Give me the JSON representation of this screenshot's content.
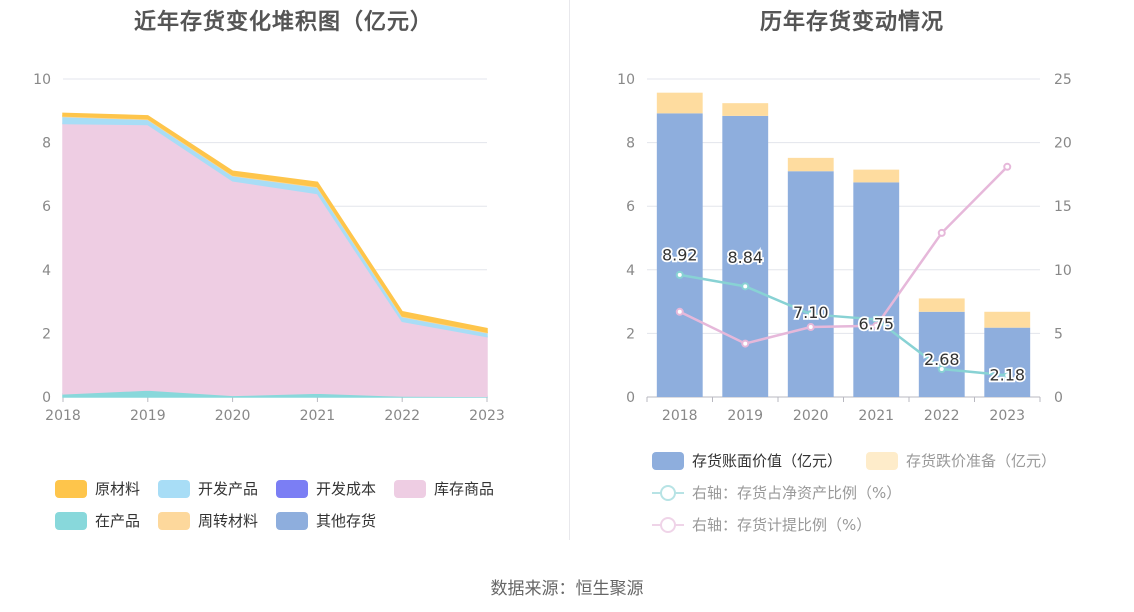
{
  "left": {
    "title": "近年存货变化堆积图（亿元）"
  },
  "right": {
    "title": "历年存货变动情况"
  },
  "source": "数据来源：恒生聚源",
  "chart_data": [
    {
      "type": "area",
      "stacked": true,
      "title": "近年存货变化堆积图（亿元）",
      "x": [
        "2018",
        "2019",
        "2020",
        "2021",
        "2022",
        "2023"
      ],
      "ylim": [
        0,
        10
      ],
      "yticks": [
        "0",
        "2",
        "4",
        "6",
        "8",
        "10"
      ],
      "grid": true,
      "legend_position": "bottom",
      "series": [
        {
          "name": "在产品",
          "color": "#88d8db",
          "values": [
            0.1,
            0.22,
            0.05,
            0.12,
            0.03,
            0.02
          ]
        },
        {
          "name": "库存商品",
          "color": "#eecde3",
          "values": [
            8.5,
            8.35,
            6.75,
            6.28,
            2.35,
            1.88
          ]
        },
        {
          "name": "开发成本",
          "color": "#7b7ef4",
          "values": [
            0,
            0,
            0,
            0,
            0,
            0
          ]
        },
        {
          "name": "开发产品",
          "color": "#a8ddf6",
          "values": [
            0.22,
            0.16,
            0.16,
            0.2,
            0.15,
            0.12
          ]
        },
        {
          "name": "其他存货",
          "color": "#8eaedd",
          "values": [
            0,
            0,
            0,
            0,
            0,
            0
          ]
        },
        {
          "name": "周转材料",
          "color": "#fdd89c",
          "values": [
            0.02,
            0.02,
            0.02,
            0.02,
            0.02,
            0.02
          ]
        },
        {
          "name": "原材料",
          "color": "#fec54b",
          "values": [
            0.08,
            0.09,
            0.12,
            0.13,
            0.13,
            0.11
          ]
        }
      ],
      "legend_order": [
        "原材料",
        "开发产品",
        "开发成本",
        "库存商品",
        "在产品",
        "周转材料",
        "其他存货"
      ]
    },
    {
      "type": "bar",
      "stacked": true,
      "title": "历年存货变动情况",
      "categories": [
        "2018",
        "2019",
        "2020",
        "2021",
        "2022",
        "2023"
      ],
      "ylim": [
        0,
        10
      ],
      "yticks": [
        "0",
        "2",
        "4",
        "6",
        "8",
        "10"
      ],
      "y2lim": [
        0,
        25
      ],
      "y2ticks": [
        "0",
        "5",
        "10",
        "15",
        "20",
        "25"
      ],
      "grid": true,
      "legend_position": "bottom",
      "series": [
        {
          "name": "存货账面价值（亿元）",
          "color": "#8eaedd",
          "axis": "left",
          "kind": "bar",
          "values": [
            8.92,
            8.84,
            7.1,
            6.75,
            2.68,
            2.18
          ],
          "labels": [
            "8.92",
            "8.84",
            "7.10",
            "6.75",
            "2.68",
            "2.18"
          ]
        },
        {
          "name": "存货跌价准备（亿元）",
          "color": "#fedc9f",
          "axis": "left",
          "kind": "bar",
          "values": [
            0.65,
            0.4,
            0.42,
            0.4,
            0.42,
            0.5
          ]
        },
        {
          "name": "右轴：存货占净资产比例（%）",
          "color": "#88d2d4",
          "axis": "right",
          "kind": "line",
          "values": [
            9.6,
            8.7,
            6.5,
            6.1,
            2.2,
            1.7
          ]
        },
        {
          "name": "右轴：存货计提比例（%）",
          "color": "#e6b8da",
          "axis": "right",
          "kind": "line",
          "values": [
            6.7,
            4.2,
            5.5,
            5.6,
            12.9,
            18.1
          ]
        }
      ]
    }
  ]
}
